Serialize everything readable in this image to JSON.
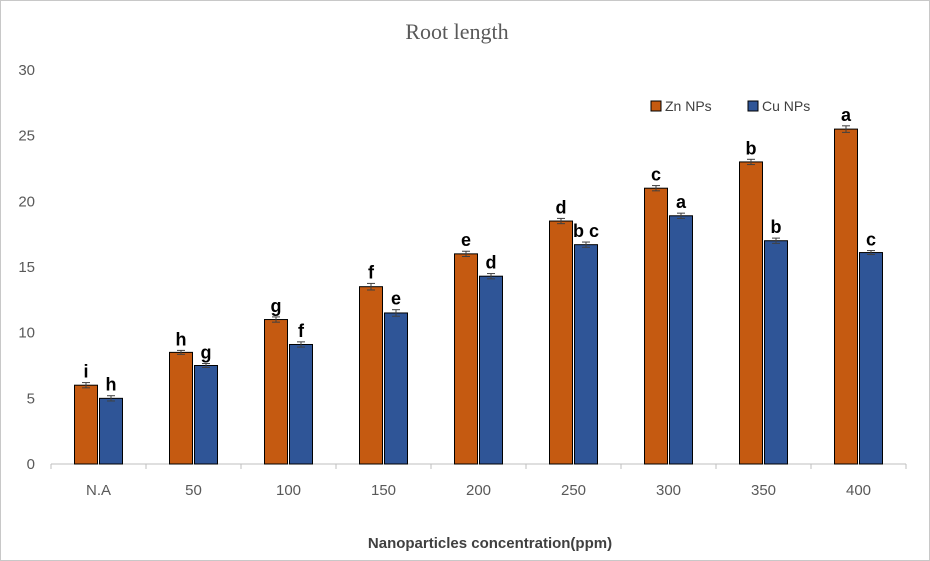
{
  "chart_data": {
    "type": "bar",
    "title": "Root length",
    "xlabel": "Nanoparticles concentration(ppm)",
    "ylabel": "",
    "ylim": [
      0,
      30
    ],
    "yticks": [
      0,
      5,
      10,
      15,
      20,
      25,
      30
    ],
    "grid": false,
    "legend_position": "top-right",
    "categories": [
      "N.A",
      "50",
      "100",
      "150",
      "200",
      "250",
      "300",
      "350",
      "400"
    ],
    "series": [
      {
        "name": "Zn NPs",
        "color": "#c55a11",
        "values": [
          6.0,
          8.5,
          11.0,
          13.5,
          16.0,
          18.5,
          21.0,
          23.0,
          25.5
        ],
        "errors": [
          0.2,
          0.15,
          0.2,
          0.25,
          0.2,
          0.2,
          0.2,
          0.2,
          0.25
        ],
        "labels": [
          "i",
          "h",
          "g",
          "f",
          "e",
          "d",
          "c",
          "b",
          "a"
        ]
      },
      {
        "name": "Cu NPs",
        "color": "#2f5597",
        "values": [
          5.0,
          7.5,
          9.1,
          11.5,
          14.3,
          16.7,
          18.9,
          17.0,
          16.1
        ],
        "errors": [
          0.2,
          0.15,
          0.2,
          0.25,
          0.2,
          0.2,
          0.2,
          0.2,
          0.15
        ],
        "labels": [
          "h",
          "g",
          "f",
          "e",
          "d",
          "b c",
          "a",
          "b",
          "c"
        ]
      }
    ]
  }
}
